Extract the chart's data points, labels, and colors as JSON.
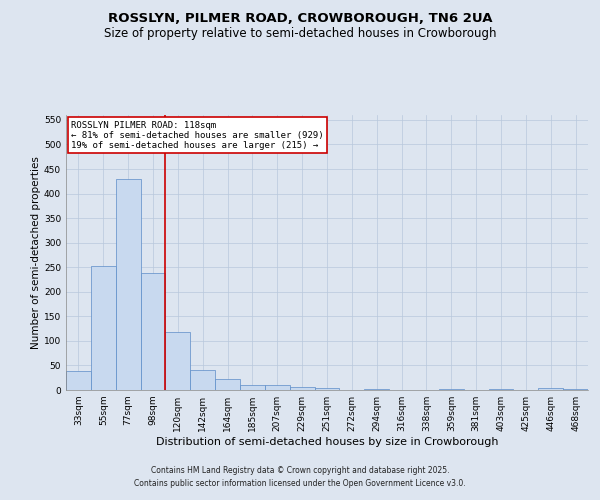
{
  "title1": "ROSSLYN, PILMER ROAD, CROWBOROUGH, TN6 2UA",
  "title2": "Size of property relative to semi-detached houses in Crowborough",
  "xlabel": "Distribution of semi-detached houses by size in Crowborough",
  "ylabel": "Number of semi-detached properties",
  "categories": [
    "33sqm",
    "55sqm",
    "77sqm",
    "98sqm",
    "120sqm",
    "142sqm",
    "164sqm",
    "185sqm",
    "207sqm",
    "229sqm",
    "251sqm",
    "272sqm",
    "294sqm",
    "316sqm",
    "338sqm",
    "359sqm",
    "381sqm",
    "403sqm",
    "425sqm",
    "446sqm",
    "468sqm"
  ],
  "values": [
    38,
    252,
    430,
    238,
    118,
    40,
    23,
    10,
    10,
    7,
    5,
    0,
    2,
    0,
    0,
    3,
    0,
    2,
    0,
    4,
    2
  ],
  "bar_color": "#c8d9ef",
  "bar_edge_color": "#5b8cc8",
  "ylim": [
    0,
    560
  ],
  "yticks": [
    0,
    50,
    100,
    150,
    200,
    250,
    300,
    350,
    400,
    450,
    500,
    550
  ],
  "vline_color": "#cc0000",
  "vline_x_index": 3.5,
  "annotation_title": "ROSSLYN PILMER ROAD: 118sqm",
  "annotation_line1": "← 81% of semi-detached houses are smaller (929)",
  "annotation_line2": "19% of semi-detached houses are larger (215) →",
  "annotation_box_color": "#cc0000",
  "annotation_bg": "#ffffff",
  "background_color": "#dde5f0",
  "footer1": "Contains HM Land Registry data © Crown copyright and database right 2025.",
  "footer2": "Contains public sector information licensed under the Open Government Licence v3.0.",
  "title1_fontsize": 9.5,
  "title2_fontsize": 8.5,
  "xlabel_fontsize": 8,
  "ylabel_fontsize": 7.5,
  "tick_fontsize": 6.5,
  "annotation_fontsize": 6.5,
  "footer_fontsize": 5.5
}
